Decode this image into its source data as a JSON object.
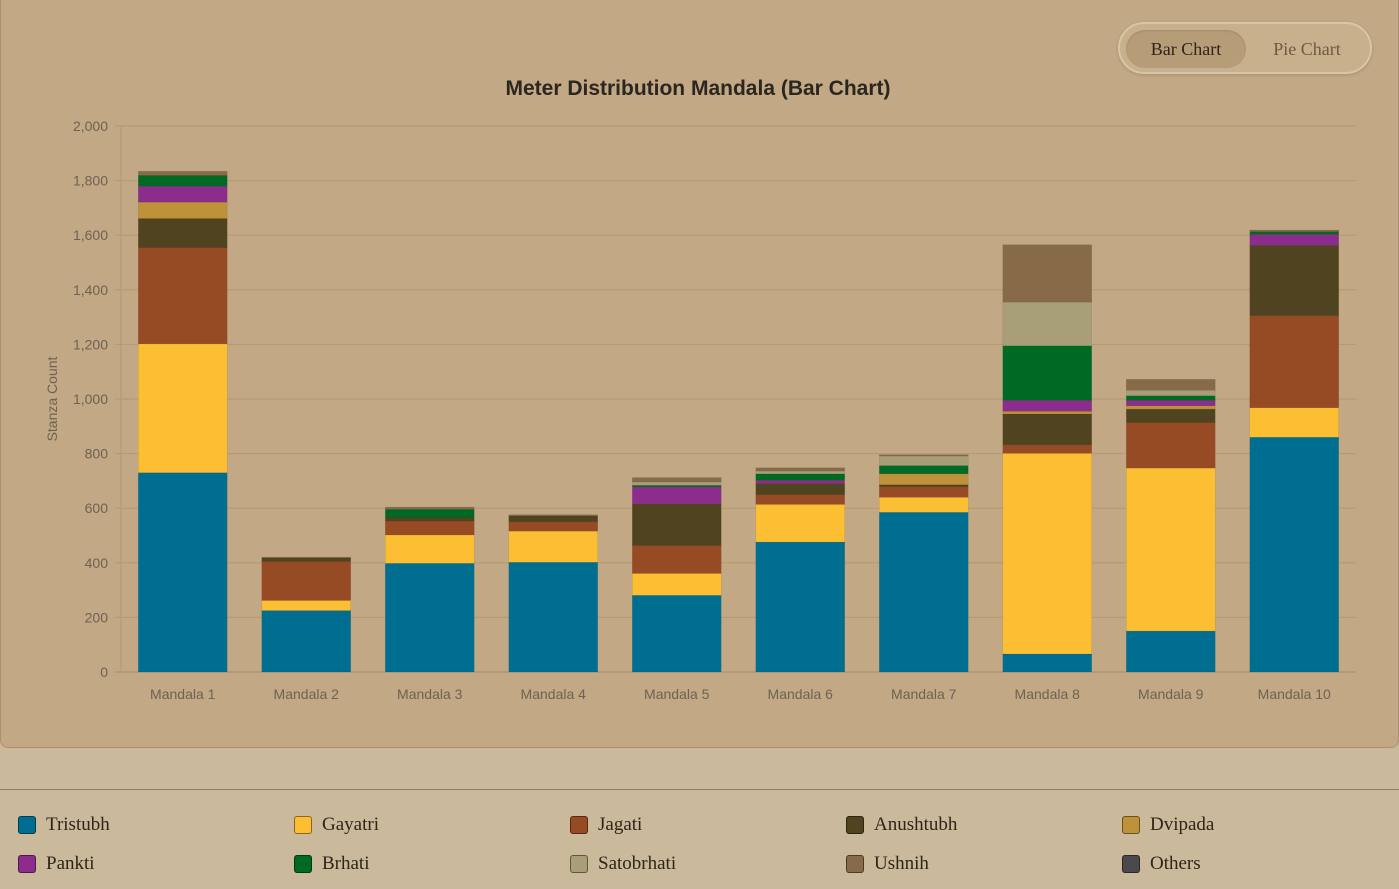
{
  "toggle": {
    "bar_label": "Bar Chart",
    "pie_label": "Pie Chart",
    "active": "bar"
  },
  "chart_data": {
    "type": "bar",
    "stacked": true,
    "title": "Meter Distribution Mandala (Bar Chart)",
    "xlabel": "",
    "ylabel": "Stanza Count",
    "ylim": [
      0,
      2000
    ],
    "yticks": [
      "0",
      "200",
      "400",
      "600",
      "800",
      "1,000",
      "1,200",
      "1,400",
      "1,600",
      "1,800",
      "2,000"
    ],
    "grid": true,
    "legend_position": "bottom",
    "categories": [
      "Mandala 1",
      "Mandala 2",
      "Mandala 3",
      "Mandala 4",
      "Mandala 5",
      "Mandala 6",
      "Mandala 7",
      "Mandala 8",
      "Mandala 9",
      "Mandala 10"
    ],
    "series": [
      {
        "name": "Tristubh",
        "color": "#006e90",
        "values": [
          730,
          225,
          398,
          402,
          281,
          476,
          585,
          66,
          150,
          860
        ]
      },
      {
        "name": "Gayatri",
        "color": "#fcbe33",
        "values": [
          472,
          37,
          104,
          114,
          80,
          138,
          55,
          735,
          597,
          108
        ]
      },
      {
        "name": "Jagati",
        "color": "#974b24",
        "values": [
          353,
          143,
          51,
          34,
          102,
          36,
          39,
          31,
          167,
          337
        ]
      },
      {
        "name": "Anushtubh",
        "color": "#4f441f",
        "values": [
          106,
          13,
          13,
          22,
          153,
          40,
          7,
          113,
          49,
          258
        ]
      },
      {
        "name": "Dvipada",
        "color": "#bd9239",
        "values": [
          60,
          0,
          0,
          0,
          0,
          0,
          40,
          10,
          12,
          0
        ]
      },
      {
        "name": "Pankti",
        "color": "#8c2c8d",
        "values": [
          58,
          0,
          0,
          0,
          62,
          12,
          0,
          40,
          20,
          40
        ]
      },
      {
        "name": "Brhati",
        "color": "#006a25",
        "values": [
          40,
          0,
          30,
          0,
          6,
          24,
          30,
          200,
          17,
          10
        ]
      },
      {
        "name": "Satobrhati",
        "color": "#a89f79",
        "values": [
          0,
          0,
          0,
          0,
          12,
          10,
          35,
          160,
          20,
          0
        ]
      },
      {
        "name": "Ushnih",
        "color": "#876a48",
        "values": [
          15,
          3,
          8,
          4,
          16,
          12,
          5,
          210,
          40,
          6
        ]
      },
      {
        "name": "Others",
        "color": "#4a4a4a",
        "values": [
          0,
          0,
          0,
          0,
          0,
          0,
          0,
          0,
          0,
          0
        ]
      }
    ]
  }
}
